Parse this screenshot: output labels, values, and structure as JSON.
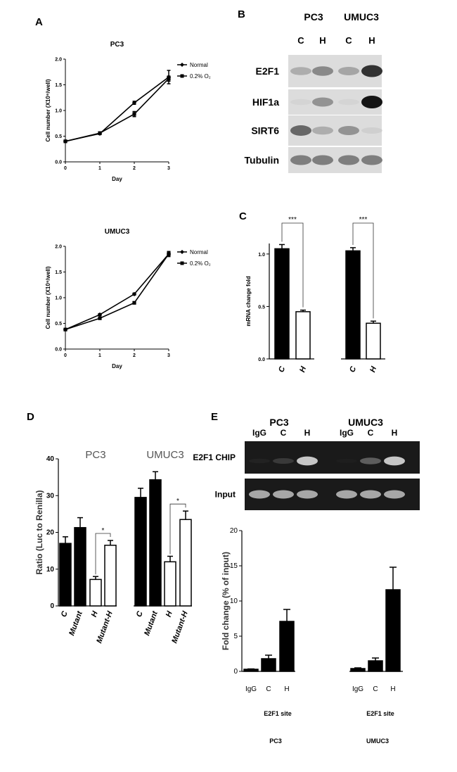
{
  "panels": {
    "A": "A",
    "B": "B",
    "C": "C",
    "D": "D",
    "E": "E"
  },
  "chart_data": [
    {
      "id": "A-top",
      "type": "line",
      "title": "PC3",
      "xlabel": "Day",
      "ylabel": "Cell number (X10⁶/well)",
      "x": [
        0,
        1,
        2,
        3
      ],
      "xticks": [
        "0",
        "1",
        "2",
        "3"
      ],
      "yticks": [
        "0.0",
        "0.5",
        "1.0",
        "1.5",
        "2.0"
      ],
      "xlim": [
        0,
        3
      ],
      "ylim": [
        0,
        2.0
      ],
      "legend": "top-right",
      "series": [
        {
          "name": "Normal",
          "marker": "diamond",
          "values": [
            0.4,
            0.55,
            1.15,
            1.65
          ],
          "errors": [
            0.01,
            0.02,
            0.03,
            0.13
          ]
        },
        {
          "name": "0.2% O₂",
          "marker": "square",
          "values": [
            0.4,
            0.56,
            0.93,
            1.62
          ],
          "errors": [
            0.01,
            0.02,
            0.05,
            0.05
          ]
        }
      ]
    },
    {
      "id": "A-bottom",
      "type": "line",
      "title": "UMUC3",
      "xlabel": "Day",
      "ylabel": "Cell number (X10⁶/well)",
      "x": [
        0,
        1,
        2,
        3
      ],
      "xticks": [
        "0",
        "1",
        "2",
        "3"
      ],
      "yticks": [
        "0.0",
        "0.5",
        "1.0",
        "1.5",
        "2.0"
      ],
      "xlim": [
        0,
        3
      ],
      "ylim": [
        0,
        2.0
      ],
      "legend": "top-right",
      "series": [
        {
          "name": "Normal",
          "marker": "diamond",
          "values": [
            0.38,
            0.67,
            1.07,
            1.85
          ],
          "errors": [
            0.01,
            0.02,
            0.02,
            0.04
          ]
        },
        {
          "name": "0.2% O₂",
          "marker": "square",
          "values": [
            0.38,
            0.6,
            0.9,
            1.85
          ],
          "errors": [
            0.01,
            0.02,
            0.02,
            0.05
          ]
        }
      ]
    },
    {
      "id": "C",
      "type": "bar",
      "ylabel": "mRNA change fold",
      "yticks": [
        "0.0",
        "0.5",
        "1.0"
      ],
      "ylim": [
        0,
        1.1
      ],
      "categories": [
        "C",
        "H",
        "C",
        "H"
      ],
      "values": [
        1.05,
        0.45,
        1.03,
        0.34
      ],
      "errors": [
        0.04,
        0.015,
        0.03,
        0.02
      ],
      "fill": [
        "#000000",
        "#ffffff",
        "#000000",
        "#ffffff"
      ],
      "annotations": [
        "***",
        "***"
      ]
    },
    {
      "id": "D",
      "type": "bar",
      "ylabel": "Ratio (Luc to Renilla)",
      "groups": [
        "PC3",
        "UMUC3"
      ],
      "yticks": [
        "0",
        "10",
        "20",
        "30",
        "40"
      ],
      "ylim": [
        0,
        40
      ],
      "categories": [
        "C",
        "Mutant",
        "H",
        "Mutant-H",
        "C",
        "Mutant",
        "H",
        "Mutant-H"
      ],
      "values": [
        17,
        21.3,
        7.2,
        16.5,
        29.5,
        34.3,
        12,
        23.5
      ],
      "errors": [
        1.8,
        2.7,
        0.8,
        1.3,
        2.5,
        2.2,
        1.5,
        2.3
      ],
      "fill": [
        "#000000",
        "#000000",
        "#ffffff",
        "#ffffff",
        "#000000",
        "#000000",
        "#ffffff",
        "#ffffff"
      ],
      "annotations": [
        "*",
        "*"
      ]
    },
    {
      "id": "E-bars",
      "type": "bar",
      "ylabel": "Fold change (% of input)",
      "yticks": [
        "0",
        "5",
        "10",
        "15",
        "20"
      ],
      "ylim": [
        0,
        20
      ],
      "categories": [
        "IgG",
        "C",
        "H",
        "IgG",
        "C",
        "H"
      ],
      "values": [
        0.3,
        1.8,
        7.1,
        0.4,
        1.5,
        11.6
      ],
      "errors": [
        0.05,
        0.5,
        1.7,
        0.1,
        0.4,
        3.2
      ],
      "site_label": "E2F1 site",
      "group_labels": [
        "PC3",
        "UMUC3"
      ]
    }
  ],
  "blot_B": {
    "cell_lines": [
      "PC3",
      "UMUC3"
    ],
    "lanes": [
      "C",
      "H",
      "C",
      "H"
    ],
    "rows": [
      {
        "label": "E2F1",
        "intensity": [
          0.35,
          0.55,
          0.4,
          0.9
        ]
      },
      {
        "label": "HIF1a",
        "intensity": [
          0.05,
          0.5,
          0.05,
          1.0
        ]
      },
      {
        "label": "SIRT6",
        "intensity": [
          0.7,
          0.35,
          0.5,
          0.1
        ]
      },
      {
        "label": "Tubulin",
        "intensity": [
          0.6,
          0.6,
          0.6,
          0.6
        ]
      }
    ]
  },
  "gel_E": {
    "cell_lines": [
      "PC3",
      "UMUC3"
    ],
    "lanes": [
      "IgG",
      "C",
      "H"
    ],
    "rows": [
      {
        "label": "E2F1 CHIP",
        "pc3": [
          0.05,
          0.25,
          0.85
        ],
        "umuc3": [
          0.0,
          0.45,
          0.85
        ]
      },
      {
        "label": "Input",
        "pc3": [
          0.75,
          0.75,
          0.75
        ],
        "umuc3": [
          0.75,
          0.75,
          0.75
        ]
      }
    ]
  }
}
